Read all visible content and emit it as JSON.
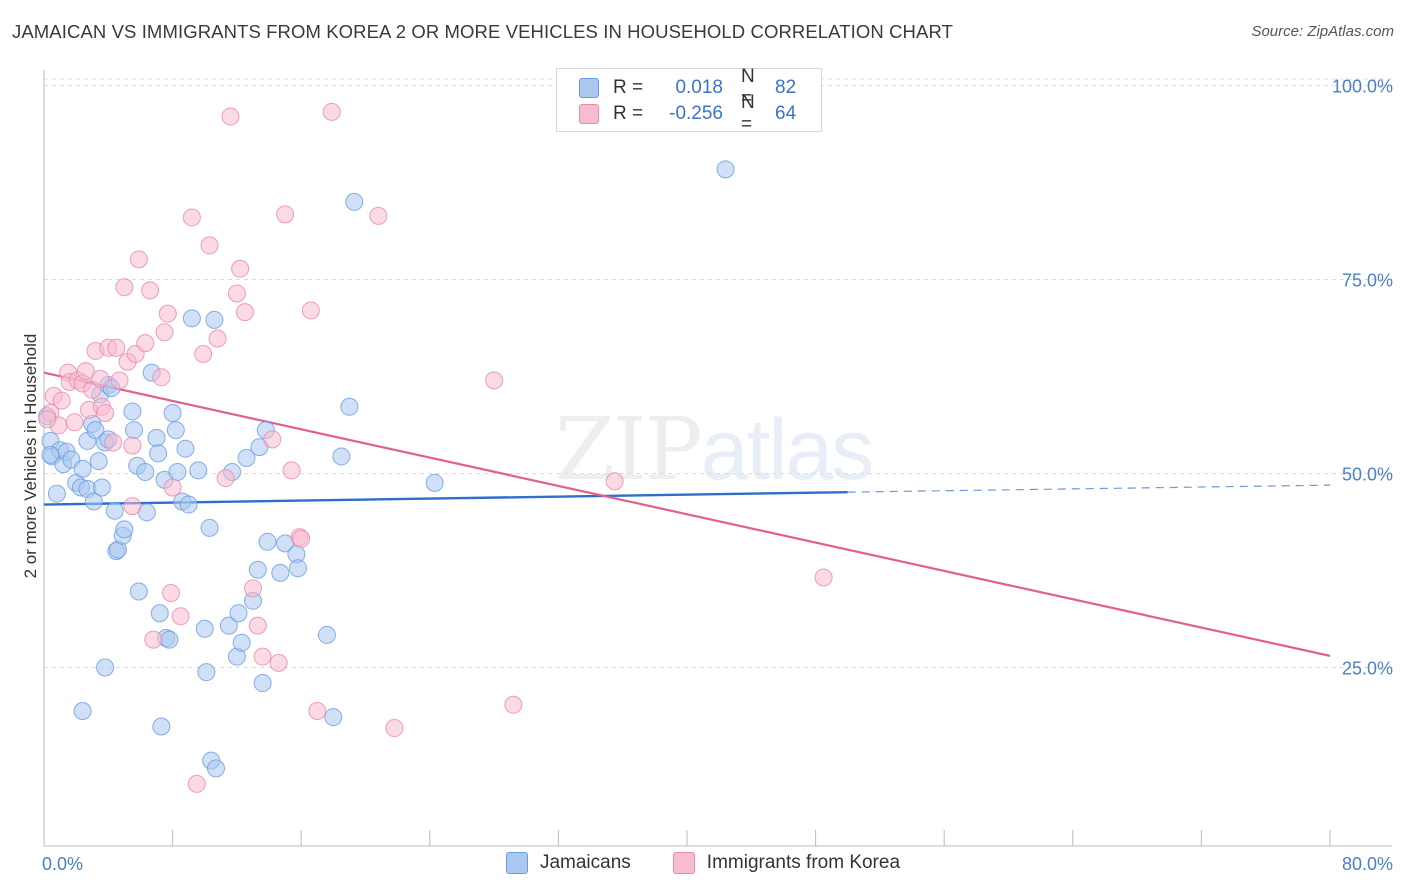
{
  "title": "JAMAICAN VS IMMIGRANTS FROM KOREA 2 OR MORE VEHICLES IN HOUSEHOLD CORRELATION CHART",
  "source": "Source: ZipAtlas.com",
  "watermark": {
    "zip": "ZIP",
    "atlas": "atlas"
  },
  "legend": {
    "r_label": "R =",
    "n_label": "N =",
    "rows": [
      {
        "r": "0.018",
        "n": "82",
        "color": "#aac8f0",
        "border": "#6a9be0"
      },
      {
        "r": "-0.256",
        "n": "64",
        "color": "#f7bcd0",
        "border": "#e888aa"
      }
    ]
  },
  "bottom_legend": [
    {
      "label": "Jamaicans",
      "color": "#aac8f0",
      "border": "#6a9be0"
    },
    {
      "label": "Immigrants from Korea",
      "color": "#f7bcd0",
      "border": "#e888aa"
    }
  ],
  "chart_data": {
    "type": "scatter",
    "title": "JAMAICAN VS IMMIGRANTS FROM KOREA 2 OR MORE VEHICLES IN HOUSEHOLD CORRELATION CHART",
    "xlabel": "",
    "ylabel": "2 or more Vehicles in Household",
    "xlim": [
      0,
      80
    ],
    "ylim": [
      2,
      102
    ],
    "x_ticks_labels": [
      "0.0%",
      "80.0%"
    ],
    "y_ticks": [
      25,
      50,
      75,
      100
    ],
    "y_tick_labels": [
      "25.0%",
      "50.0%",
      "75.0%",
      "100.0%"
    ],
    "grid": "horizontal dashed",
    "series": [
      {
        "name": "Jamaicans",
        "color": "#6a9be0",
        "fill": "#aac8f0",
        "trend": {
          "x0": 0,
          "y0": 46.0,
          "x1": 50,
          "y1": 47.6,
          "dashed_to": 80,
          "dashed_y": 48.5,
          "color": "#2e6fcc"
        },
        "points": [
          [
            0.4,
            54.2
          ],
          [
            0.5,
            52.2
          ],
          [
            0.8,
            47.4
          ],
          [
            1.0,
            53.0
          ],
          [
            1.2,
            51.2
          ],
          [
            1.4,
            52.8
          ],
          [
            1.7,
            51.8
          ],
          [
            2.0,
            48.8
          ],
          [
            2.3,
            48.2
          ],
          [
            2.4,
            50.6
          ],
          [
            2.7,
            48.0
          ],
          [
            2.7,
            54.2
          ],
          [
            3.0,
            56.4
          ],
          [
            3.1,
            46.4
          ],
          [
            3.2,
            55.6
          ],
          [
            3.4,
            51.6
          ],
          [
            3.5,
            60.2
          ],
          [
            3.6,
            48.2
          ],
          [
            3.8,
            54.0
          ],
          [
            4.0,
            54.4
          ],
          [
            4.0,
            61.4
          ],
          [
            4.2,
            61.0
          ],
          [
            4.4,
            45.2
          ],
          [
            4.5,
            40.0
          ],
          [
            4.6,
            40.2
          ],
          [
            4.9,
            42.0
          ],
          [
            5.0,
            42.8
          ],
          [
            5.5,
            58.0
          ],
          [
            5.6,
            55.6
          ],
          [
            5.8,
            51.0
          ],
          [
            5.9,
            34.8
          ],
          [
            6.3,
            50.2
          ],
          [
            6.4,
            45.0
          ],
          [
            6.7,
            63.0
          ],
          [
            7.0,
            54.6
          ],
          [
            7.1,
            52.6
          ],
          [
            7.2,
            32.0
          ],
          [
            7.3,
            17.4
          ],
          [
            7.5,
            49.2
          ],
          [
            7.6,
            28.8
          ],
          [
            7.8,
            28.6
          ],
          [
            8.0,
            57.8
          ],
          [
            8.2,
            55.6
          ],
          [
            8.3,
            50.2
          ],
          [
            8.6,
            46.4
          ],
          [
            8.8,
            53.2
          ],
          [
            9.2,
            70.0
          ],
          [
            9.6,
            50.4
          ],
          [
            10.0,
            30.0
          ],
          [
            10.1,
            24.4
          ],
          [
            10.3,
            43.0
          ],
          [
            10.4,
            13.0
          ],
          [
            10.6,
            69.8
          ],
          [
            10.7,
            12.0
          ],
          [
            11.5,
            30.4
          ],
          [
            11.7,
            50.2
          ],
          [
            12.0,
            26.4
          ],
          [
            12.1,
            32.0
          ],
          [
            12.3,
            28.2
          ],
          [
            12.6,
            52.0
          ],
          [
            13.0,
            33.6
          ],
          [
            13.3,
            37.6
          ],
          [
            13.4,
            53.4
          ],
          [
            13.6,
            23.0
          ],
          [
            13.8,
            55.6
          ],
          [
            13.9,
            41.2
          ],
          [
            14.7,
            37.2
          ],
          [
            15.0,
            41.0
          ],
          [
            15.7,
            39.6
          ],
          [
            15.8,
            37.8
          ],
          [
            17.6,
            29.2
          ],
          [
            18.0,
            18.6
          ],
          [
            18.5,
            52.2
          ],
          [
            19.0,
            58.6
          ],
          [
            19.3,
            85.0
          ],
          [
            24.3,
            48.8
          ],
          [
            42.4,
            89.2
          ],
          [
            2.4,
            19.4
          ],
          [
            0.2,
            57.4
          ],
          [
            0.4,
            52.4
          ],
          [
            9.0,
            46.0
          ],
          [
            3.8,
            25.0
          ]
        ]
      },
      {
        "name": "Immigrants from Korea",
        "color": "#e888aa",
        "fill": "#f7bcd0",
        "trend": {
          "x0": 0,
          "y0": 63.0,
          "x1": 80,
          "y1": 26.5,
          "color": "#e0608e"
        },
        "points": [
          [
            0.4,
            57.8
          ],
          [
            0.6,
            60.0
          ],
          [
            0.9,
            56.2
          ],
          [
            1.1,
            59.4
          ],
          [
            1.5,
            63.0
          ],
          [
            1.6,
            61.8
          ],
          [
            1.9,
            56.6
          ],
          [
            2.1,
            62.0
          ],
          [
            2.4,
            61.6
          ],
          [
            2.6,
            63.2
          ],
          [
            2.8,
            58.2
          ],
          [
            3.0,
            60.8
          ],
          [
            3.2,
            65.8
          ],
          [
            3.5,
            62.2
          ],
          [
            3.6,
            58.6
          ],
          [
            3.8,
            57.8
          ],
          [
            4.0,
            66.2
          ],
          [
            4.3,
            54.0
          ],
          [
            4.5,
            66.2
          ],
          [
            4.7,
            62.0
          ],
          [
            5.0,
            74.0
          ],
          [
            5.2,
            64.4
          ],
          [
            5.5,
            45.8
          ],
          [
            5.7,
            65.4
          ],
          [
            5.9,
            77.6
          ],
          [
            6.3,
            66.8
          ],
          [
            6.6,
            73.6
          ],
          [
            6.8,
            28.6
          ],
          [
            7.3,
            62.4
          ],
          [
            7.5,
            68.2
          ],
          [
            7.7,
            70.6
          ],
          [
            7.9,
            34.6
          ],
          [
            8.0,
            48.2
          ],
          [
            8.5,
            31.6
          ],
          [
            9.2,
            83.0
          ],
          [
            9.5,
            10.0
          ],
          [
            9.9,
            65.4
          ],
          [
            10.3,
            79.4
          ],
          [
            10.8,
            67.4
          ],
          [
            11.3,
            49.4
          ],
          [
            11.6,
            96.0
          ],
          [
            12.0,
            73.2
          ],
          [
            12.2,
            76.4
          ],
          [
            12.5,
            70.8
          ],
          [
            13.0,
            35.2
          ],
          [
            13.3,
            30.4
          ],
          [
            13.6,
            26.4
          ],
          [
            14.2,
            54.4
          ],
          [
            14.6,
            25.6
          ],
          [
            15.0,
            83.4
          ],
          [
            15.4,
            50.4
          ],
          [
            15.9,
            41.8
          ],
          [
            16.6,
            71.0
          ],
          [
            17.0,
            19.4
          ],
          [
            17.9,
            96.6
          ],
          [
            20.8,
            83.2
          ],
          [
            21.8,
            17.2
          ],
          [
            28.0,
            62.0
          ],
          [
            29.2,
            20.2
          ],
          [
            35.5,
            49.0
          ],
          [
            48.5,
            36.6
          ],
          [
            0.2,
            57.0
          ],
          [
            5.5,
            53.6
          ],
          [
            16.0,
            41.6
          ]
        ]
      }
    ]
  }
}
